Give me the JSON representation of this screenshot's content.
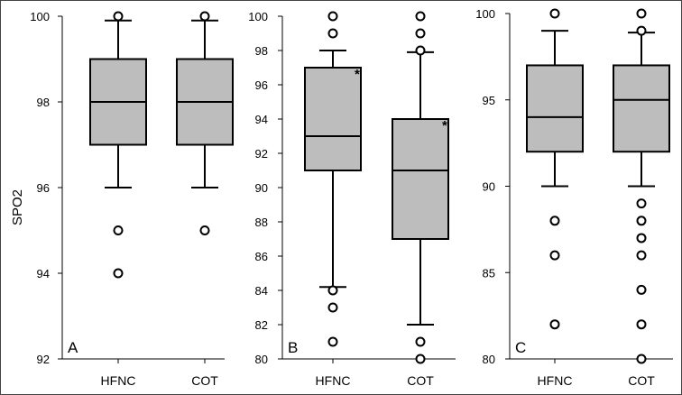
{
  "ylabel": "SPO2",
  "colors": {
    "box_fill": "#bdbdbd",
    "stroke": "#000000",
    "outlier_fill": "#ffffff"
  },
  "chart_data": [
    {
      "type": "box",
      "panel_label": "A",
      "categories": [
        "HFNC",
        "COT"
      ],
      "ylabel": "SPO2",
      "ylim": [
        92,
        100
      ],
      "yticks": [
        92,
        94,
        96,
        98,
        100
      ],
      "boxes": [
        {
          "q1": 97,
          "median": 98,
          "q3": 99,
          "whisker_low": 96,
          "whisker_high": 99.9,
          "outliers": [
            100,
            95,
            94
          ],
          "marker": ""
        },
        {
          "q1": 97,
          "median": 98,
          "q3": 99,
          "whisker_low": 96,
          "whisker_high": 99.9,
          "outliers": [
            100,
            95
          ],
          "marker": ""
        }
      ]
    },
    {
      "type": "box",
      "panel_label": "B",
      "categories": [
        "HFNC",
        "COT"
      ],
      "ylim": [
        80,
        100
      ],
      "yticks": [
        80,
        82,
        84,
        86,
        88,
        90,
        92,
        94,
        96,
        98,
        100
      ],
      "boxes": [
        {
          "q1": 91,
          "median": 93,
          "q3": 97,
          "whisker_low": 84.2,
          "whisker_high": 98,
          "outliers": [
            100,
            99,
            84,
            83,
            81
          ],
          "marker": "*"
        },
        {
          "q1": 87,
          "median": 91,
          "q3": 94,
          "whisker_low": 82,
          "whisker_high": 97.9,
          "outliers": [
            100,
            99,
            98,
            81,
            80
          ],
          "marker": "*"
        }
      ]
    },
    {
      "type": "box",
      "panel_label": "C",
      "categories": [
        "HFNC",
        "COT"
      ],
      "ylim": [
        80,
        100
      ],
      "yticks": [
        80,
        85,
        90,
        95,
        100
      ],
      "boxes": [
        {
          "q1": 92,
          "median": 94,
          "q3": 97,
          "whisker_low": 90,
          "whisker_high": 99,
          "outliers": [
            100,
            88,
            86,
            82
          ],
          "marker": ""
        },
        {
          "q1": 92,
          "median": 95,
          "q3": 97,
          "whisker_low": 90,
          "whisker_high": 98.9,
          "outliers": [
            100,
            99,
            89,
            88,
            87,
            86,
            84,
            82,
            80
          ],
          "marker": ""
        }
      ]
    }
  ]
}
